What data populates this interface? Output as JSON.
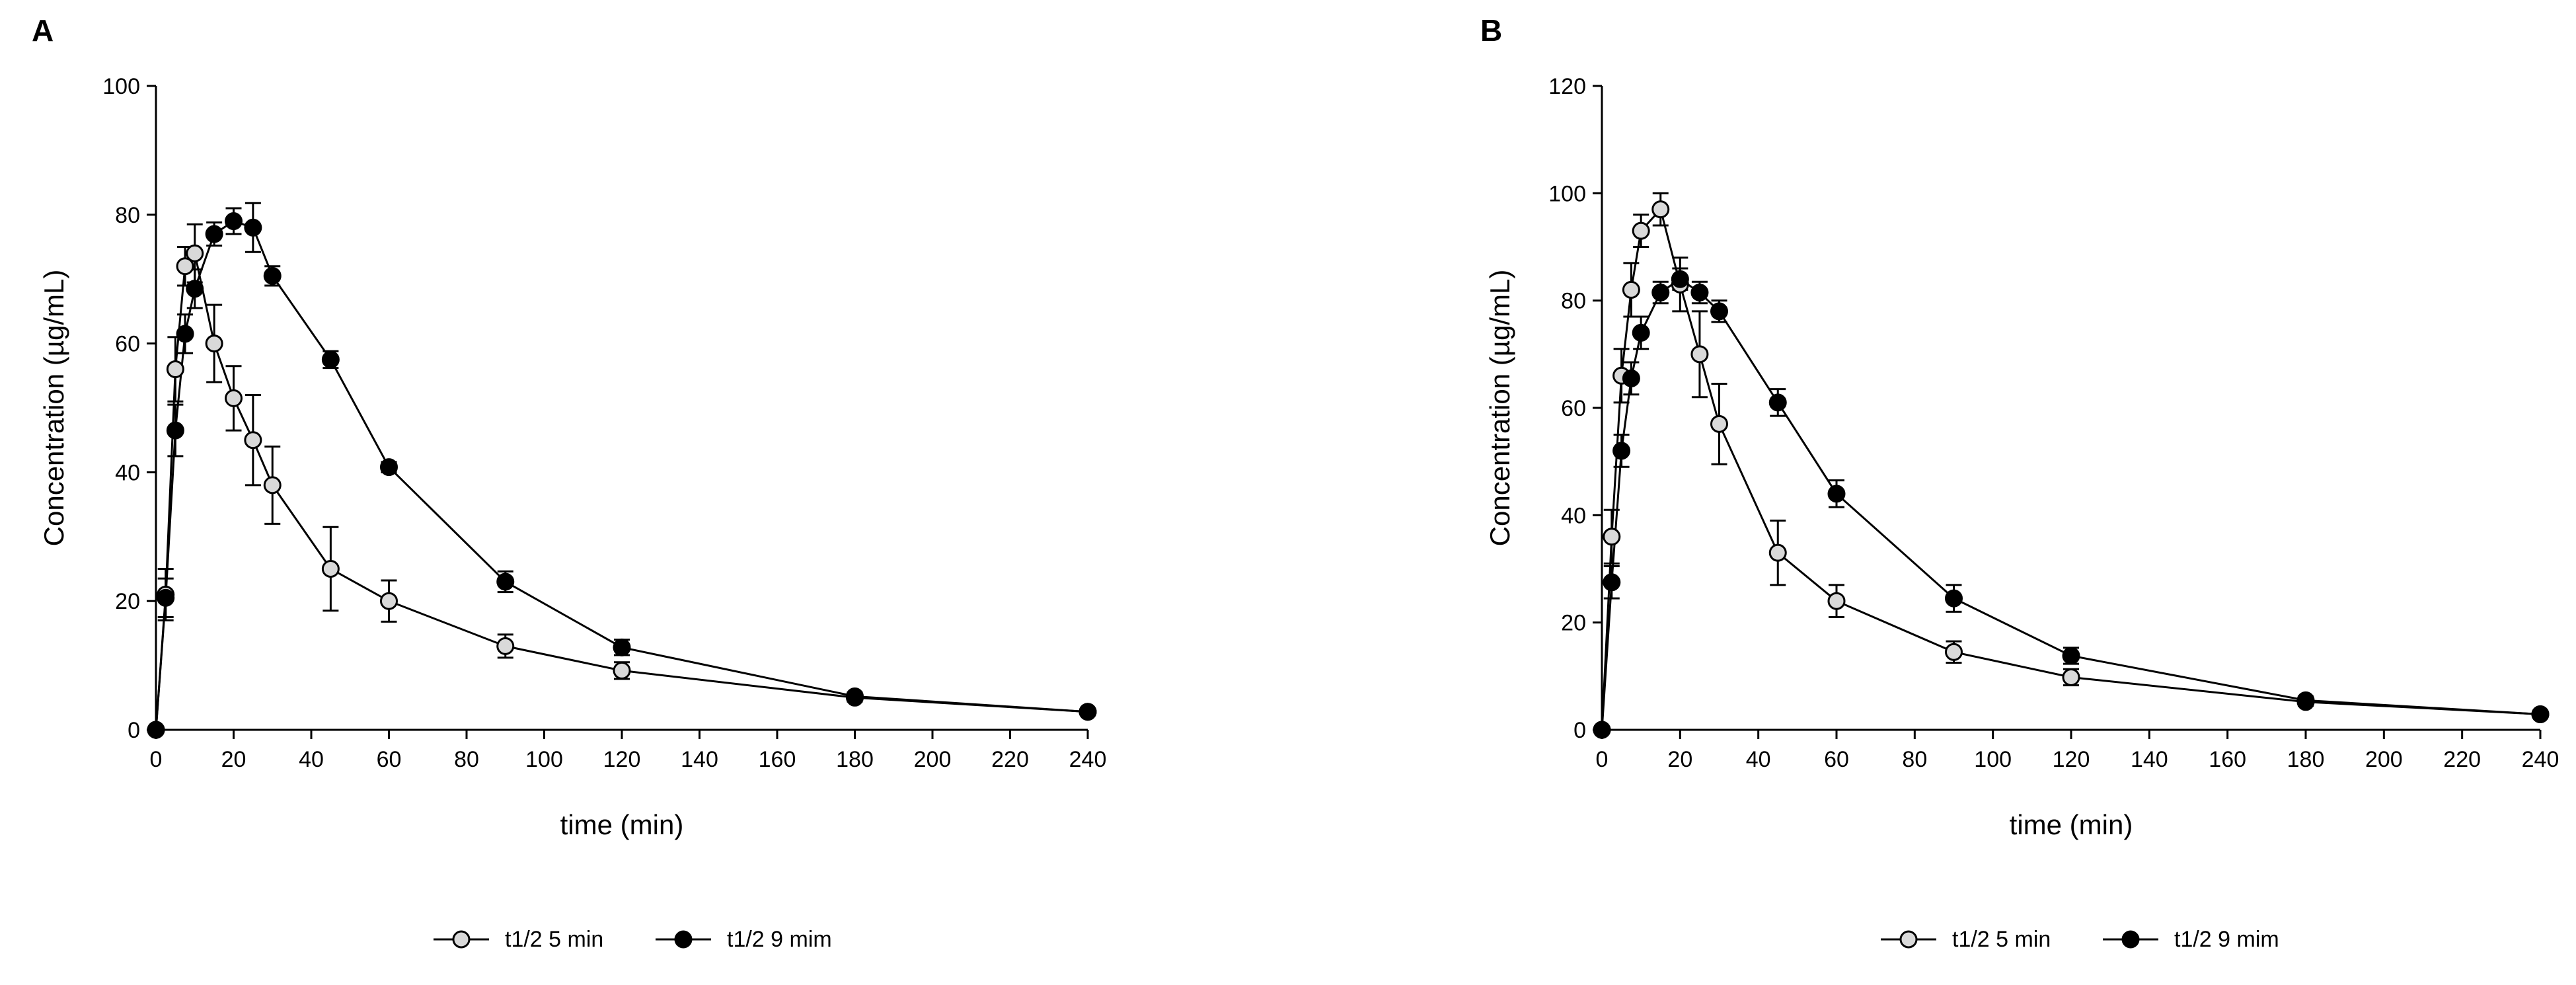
{
  "chart_data": [
    {
      "type": "line",
      "panel_label": "A",
      "xlabel": "time (min)",
      "ylabel": "Concentration (µg/mL)",
      "xlim": [
        0,
        240
      ],
      "ylim": [
        0,
        100
      ],
      "xticks": [
        0,
        20,
        40,
        60,
        80,
        100,
        120,
        140,
        160,
        180,
        200,
        220,
        240
      ],
      "yticks": [
        0,
        20,
        40,
        60,
        80,
        100
      ],
      "legend_position": "bottom",
      "series": [
        {
          "name": "t1/2 5 min",
          "marker": "open-circle",
          "color": "#d9d9d9",
          "x": [
            0,
            2.5,
            5,
            7.5,
            10,
            15,
            20,
            25,
            30,
            45,
            60,
            90,
            120,
            180,
            240
          ],
          "y": [
            0,
            21,
            56,
            72,
            74,
            60,
            51.5,
            45,
            38,
            25,
            20,
            13,
            9.2,
            5,
            2.8
          ],
          "err": [
            0,
            4,
            5,
            3,
            4.5,
            6,
            5,
            7,
            6,
            6.5,
            3.2,
            1.8,
            1.3,
            0.6,
            0.3
          ]
        },
        {
          "name": "t1/2 9 mim",
          "marker": "filled-circle",
          "color": "#000000",
          "x": [
            0,
            2.5,
            5,
            7.5,
            10,
            15,
            20,
            25,
            30,
            45,
            60,
            90,
            120,
            180,
            240
          ],
          "y": [
            0,
            20.5,
            46.5,
            61.5,
            68.5,
            77,
            79,
            78,
            70.5,
            57.5,
            40.8,
            23,
            12.8,
            5.2,
            2.8
          ],
          "err": [
            0,
            3,
            4,
            3,
            3,
            1.8,
            2,
            3.8,
            1.5,
            1.3,
            0.8,
            1.6,
            1.2,
            0.6,
            0.4
          ]
        }
      ]
    },
    {
      "type": "line",
      "panel_label": "B",
      "xlabel": "time (min)",
      "ylabel": "Concentration (µg/mL)",
      "xlim": [
        0,
        240
      ],
      "ylim": [
        0,
        120
      ],
      "xticks": [
        0,
        20,
        40,
        60,
        80,
        100,
        120,
        140,
        160,
        180,
        200,
        220,
        240
      ],
      "yticks": [
        0,
        20,
        40,
        60,
        80,
        100,
        120
      ],
      "legend_position": "bottom",
      "series": [
        {
          "name": "t1/2 5 min",
          "marker": "open-circle",
          "color": "#d9d9d9",
          "x": [
            0,
            2.5,
            5,
            7.5,
            10,
            15,
            20,
            25,
            30,
            45,
            60,
            90,
            120,
            180,
            240
          ],
          "y": [
            0,
            36,
            66,
            82,
            93,
            97,
            83,
            70,
            57,
            33,
            24,
            14.5,
            9.8,
            5.2,
            2.9
          ],
          "err": [
            0,
            5,
            5,
            5,
            3,
            3,
            5,
            8,
            7.5,
            6,
            3,
            2,
            1.5,
            0.7,
            0.3
          ]
        },
        {
          "name": "t1/2 9 mim",
          "marker": "filled-circle",
          "color": "#000000",
          "x": [
            0,
            2.5,
            5,
            7.5,
            10,
            15,
            20,
            25,
            30,
            45,
            60,
            90,
            120,
            180,
            240
          ],
          "y": [
            0,
            27.5,
            52,
            65.5,
            74,
            81.5,
            84,
            81.5,
            78,
            61,
            44,
            24.5,
            13.8,
            5.5,
            2.9
          ],
          "err": [
            0,
            3,
            3,
            3,
            3,
            2,
            2,
            2,
            2,
            2.5,
            2.5,
            2.5,
            1.5,
            0.7,
            0.3
          ]
        }
      ]
    }
  ]
}
